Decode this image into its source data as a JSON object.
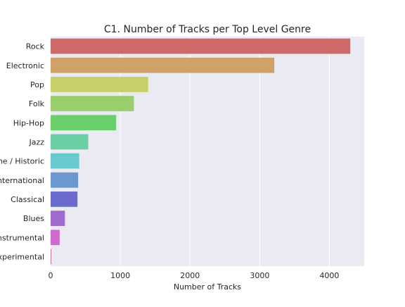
{
  "chart_data": {
    "type": "bar",
    "orientation": "horizontal",
    "title": "C1. Number of Tracks per Top Level Genre",
    "xlabel": "Number of Tracks",
    "ylabel": "",
    "xlim": [
      0,
      4500
    ],
    "xticks": [
      0,
      1000,
      2000,
      3000,
      4000
    ],
    "xtick_labels": [
      "0",
      "1000",
      "2000",
      "3000",
      "4000"
    ],
    "grid": true,
    "categories": [
      "Rock",
      "Electronic",
      "Pop",
      "Folk",
      "Hip-Hop",
      "Jazz",
      "Old-Time / Historic",
      "International",
      "Classical",
      "Blues",
      "Instrumental",
      "Experimental"
    ],
    "category_labels": [
      "Rock",
      "Electronic",
      "Pop",
      "Folk",
      "Hip-Hop",
      "Jazz",
      "ime / Historic",
      "International",
      "Classical",
      "Blues",
      "Instrumental",
      "Experimental"
    ],
    "values": [
      4300,
      3210,
      1400,
      1195,
      940,
      540,
      410,
      395,
      385,
      205,
      130,
      10
    ],
    "colors": [
      "#cd6a67",
      "#cfa26a",
      "#c8cf6a",
      "#98cf6a",
      "#6acf6a",
      "#6acfa3",
      "#6ac8cf",
      "#6a98cf",
      "#6a6acf",
      "#a06acf",
      "#cf6acf",
      "#cf6a98"
    ],
    "background": "#eaeaf2",
    "grid_color": "#ffffff"
  }
}
